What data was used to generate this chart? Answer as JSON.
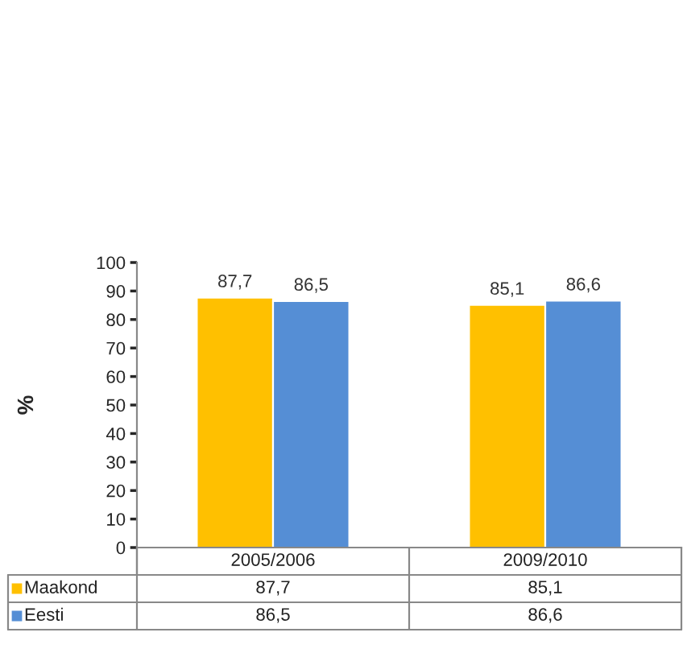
{
  "chart_data": {
    "type": "bar",
    "ylabel": "%",
    "categories": [
      "2005/2006",
      "2009/2010"
    ],
    "series": [
      {
        "name": "Maakond",
        "color": "#ffc000",
        "values": [
          87.7,
          85.1
        ],
        "value_labels": [
          "87,7",
          "85,1"
        ]
      },
      {
        "name": "Eesti",
        "color": "#558ed5",
        "values": [
          86.5,
          86.6
        ],
        "value_labels": [
          "86,5",
          "86,6"
        ]
      }
    ],
    "ylim": [
      0,
      100
    ],
    "yticks": [
      0,
      10,
      20,
      30,
      40,
      50,
      60,
      70,
      80,
      90,
      100
    ],
    "legend": "bottom",
    "grid": false
  }
}
